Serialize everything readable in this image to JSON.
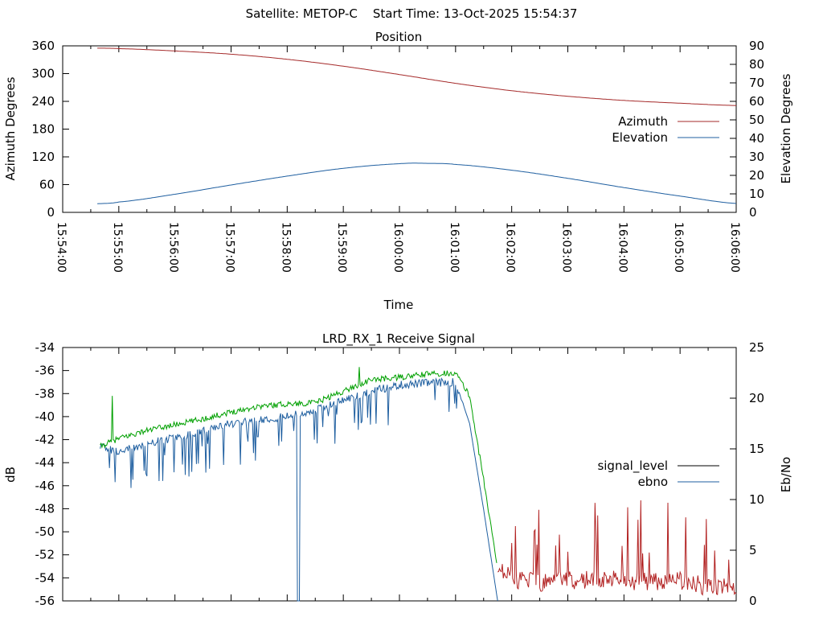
{
  "header": "Satellite: METOP-C    Start Time: 13-Oct-2025 15:54:37",
  "colors": {
    "azimuth": "#a52a2a",
    "elevation": "#1f5fa0",
    "signal_level": "#000000",
    "ebno": "#1f5fa0",
    "signal_trace_green": "#00a000",
    "signal_trace_red": "#b22222",
    "axis": "#000000"
  },
  "chart_data": [
    {
      "type": "line",
      "title": "Position",
      "xlabel": "Time",
      "ylabel": "Azimuth Degrees",
      "y2label": "Elevation Degrees",
      "x_tick_labels": [
        "15:54:00",
        "15:55:00",
        "15:56:00",
        "15:57:00",
        "15:58:00",
        "15:59:00",
        "16:00:00",
        "16:01:00",
        "16:02:00",
        "16:03:00",
        "16:04:00",
        "16:05:00",
        "16:06:00"
      ],
      "ylim": [
        0,
        360
      ],
      "y_ticks": [
        "0",
        "60",
        "120",
        "180",
        "240",
        "300",
        "360"
      ],
      "y2lim": [
        0,
        90
      ],
      "y2_ticks": [
        "0",
        "10",
        "20",
        "30",
        "40",
        "50",
        "60",
        "70",
        "80",
        "90"
      ],
      "grid": false,
      "legend_position": "right-middle",
      "series": [
        {
          "name": "Azimuth",
          "axis": "y",
          "x": [
            "15:54:37",
            "15:55:00",
            "15:56:00",
            "15:57:00",
            "15:58:00",
            "15:59:00",
            "16:00:00",
            "16:01:00",
            "16:02:00",
            "16:03:00",
            "16:04:00",
            "16:05:00",
            "16:06:00"
          ],
          "values": [
            355,
            354,
            349,
            342,
            331,
            316,
            298,
            279,
            263,
            251,
            242,
            236,
            231
          ]
        },
        {
          "name": "Elevation",
          "axis": "y2",
          "x": [
            "15:54:37",
            "15:55:00",
            "15:56:00",
            "15:57:00",
            "15:58:00",
            "15:59:00",
            "16:00:00",
            "16:00:30",
            "16:01:00",
            "16:02:00",
            "16:03:00",
            "16:04:00",
            "16:05:00",
            "16:06:00"
          ],
          "values": [
            4.7,
            5.6,
            9.8,
            14.8,
            19.6,
            23.8,
            26.3,
            26.5,
            25.9,
            22.8,
            18.4,
            13.4,
            8.8,
            4.8
          ]
        }
      ]
    },
    {
      "type": "line",
      "title": "LRD_RX_1 Receive Signal",
      "xlabel": "",
      "ylabel": "dB",
      "y2label": "Eb/No",
      "ylim": [
        -56,
        -34
      ],
      "y_ticks": [
        "-34",
        "-36",
        "-38",
        "-40",
        "-42",
        "-44",
        "-46",
        "-48",
        "-50",
        "-52",
        "-54",
        "-56"
      ],
      "y2lim": [
        0,
        25
      ],
      "y2_ticks": [
        "0",
        "5",
        "10",
        "15",
        "20",
        "25"
      ],
      "grid": false,
      "legend_position": "right-middle",
      "series": [
        {
          "name": "signal_level",
          "axis": "y",
          "x": [
            "15:54:40",
            "15:55:00",
            "15:55:30",
            "15:56:00",
            "15:56:30",
            "15:57:00",
            "15:57:30",
            "15:58:00",
            "15:58:30",
            "15:59:00",
            "15:59:30",
            "16:00:00",
            "16:00:30",
            "16:01:00",
            "16:01:15",
            "16:01:30",
            "16:01:45",
            "16:02:00",
            "16:02:30",
            "16:03:00",
            "16:03:30",
            "16:04:00",
            "16:04:30",
            "16:05:00",
            "16:05:30",
            "16:06:00"
          ],
          "values": [
            -42.6,
            -41.9,
            -41.2,
            -40.7,
            -40.2,
            -39.6,
            -39.1,
            -38.9,
            -38.8,
            -37.8,
            -36.8,
            -36.6,
            -36.3,
            -36.2,
            -38.2,
            -45.5,
            -53.2,
            -54.3,
            -54.6,
            -54.4,
            -54.3,
            -54.4,
            -54.6,
            -54.4,
            -55.0,
            -55.0
          ]
        },
        {
          "name": "ebno",
          "axis": "y2",
          "x": [
            "15:54:40",
            "15:55:00",
            "15:55:30",
            "15:56:00",
            "15:56:30",
            "15:57:00",
            "15:57:30",
            "15:58:00",
            "15:58:30",
            "15:59:00",
            "15:59:30",
            "16:00:00",
            "16:00:30",
            "16:01:00",
            "16:01:15",
            "16:01:30",
            "16:01:45"
          ],
          "values": [
            15.3,
            14.7,
            15.5,
            16.1,
            16.7,
            17.5,
            17.9,
            18.2,
            18.8,
            19.8,
            20.7,
            21.3,
            21.5,
            21.6,
            17.5,
            9.0,
            0.0
          ]
        }
      ]
    }
  ]
}
